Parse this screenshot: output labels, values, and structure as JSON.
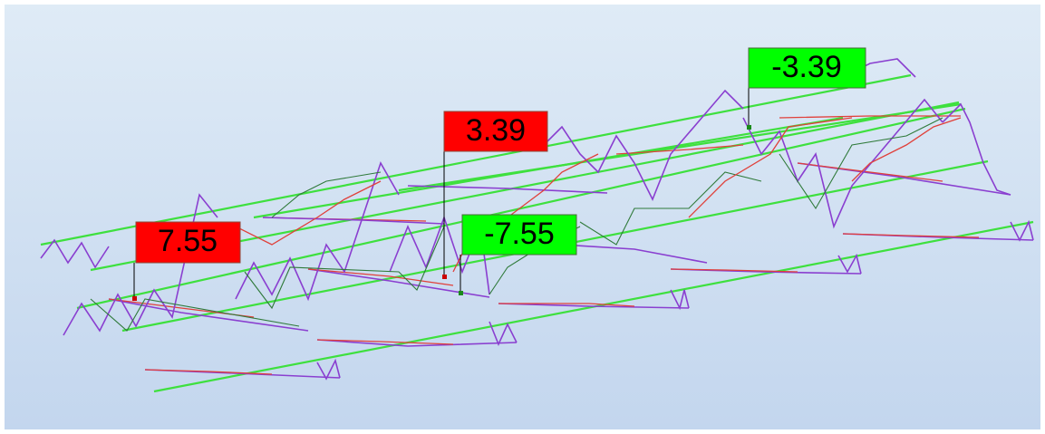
{
  "labels": [
    {
      "text": "7.55",
      "color": "#ff0000"
    },
    {
      "text": "3.39",
      "color": "#ff0000"
    },
    {
      "text": "-7.55",
      "color": "#00ff00"
    },
    {
      "text": "-3.39",
      "color": "#00ff00"
    }
  ]
}
